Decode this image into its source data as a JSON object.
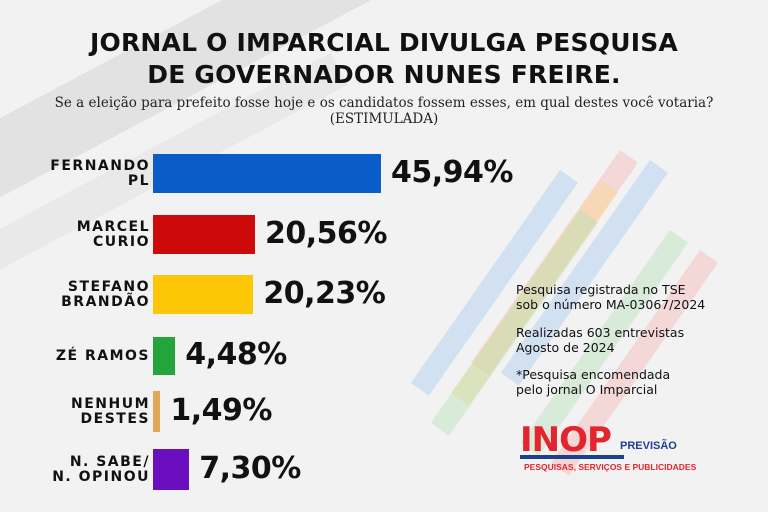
{
  "header": {
    "title_line1": "JORNAL O IMPARCIAL DIVULGA PESQUISA",
    "title_line2": "DE GOVERNADOR NUNES FREIRE.",
    "question": "Se a eleição para prefeito fosse hoje e os candidatos fossem esses, em qual destes você votaria?",
    "question_type": "(ESTIMULADA)"
  },
  "chart_data": {
    "type": "bar",
    "orientation": "horizontal",
    "title": "JORNAL O IMPARCIAL DIVULGA PESQUISA DE GOVERNADOR NUNES FREIRE.",
    "subtitle": "Se a eleição para prefeito fosse hoje e os candidatos fossem esses, em qual destes você votaria? (ESTIMULADA)",
    "categories": [
      [
        "FERNANDO",
        "PL"
      ],
      [
        "MARCEL",
        "CURIO"
      ],
      [
        "STEFANO",
        "BRANDÃO"
      ],
      [
        "ZÉ RAMOS"
      ],
      [
        "NENHUM",
        "DESTES"
      ],
      [
        "N. SABE/",
        "N. OPINOU"
      ]
    ],
    "values": [
      45.94,
      20.56,
      20.23,
      4.48,
      1.49,
      7.3
    ],
    "value_labels": [
      "45,94%",
      "20,56%",
      "20,23%",
      "4,48%",
      "1,49%",
      "7,30%"
    ],
    "colors": [
      "#0a5cc9",
      "#cc0a0a",
      "#fdc707",
      "#23a53c",
      "#e1a85c",
      "#6b0ec0"
    ],
    "unit": "%",
    "xlabel": "",
    "ylabel": "",
    "grid": false,
    "legend": "none"
  },
  "info": {
    "registration_line1": "Pesquisa registrada no TSE",
    "registration_line2": "sob o número MA-03067/2024",
    "interviews_line1": "Realizadas 603 entrevistas",
    "interviews_line2": "Agosto de 2024",
    "commissioned_line1": "*Pesquisa encomendada",
    "commissioned_line2": "pelo jornal O Imparcial"
  },
  "logo": {
    "name": "INOP",
    "partner": "PREVISÃO",
    "tagline": "PESQUISAS, SERVIÇOS E PUBLICIDADES"
  }
}
